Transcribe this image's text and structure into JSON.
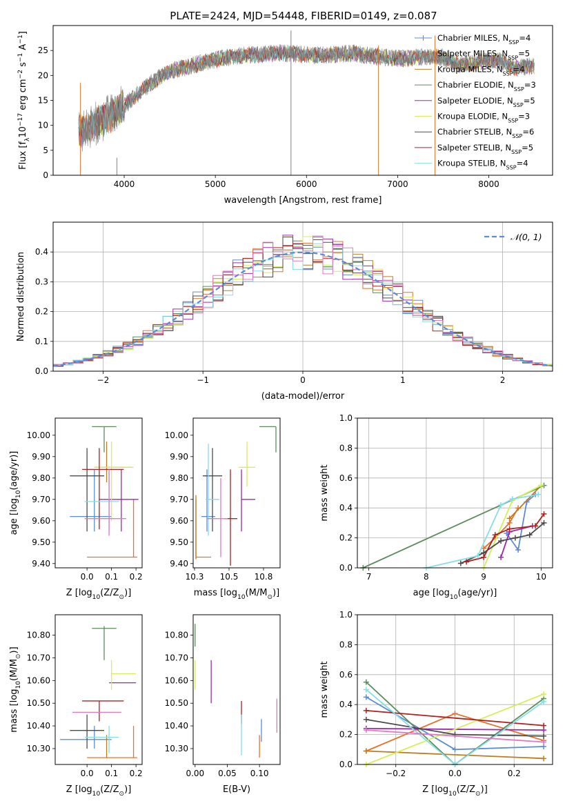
{
  "figure_title": "PLATE=2424, MJD=54448, FIBERID=0149, z=0.087",
  "chart_data": [
    {
      "type": "line",
      "id": "spectrum",
      "title": "PLATE=2424, MJD=54448, FIBERID=0149, z=0.087",
      "xlabel": "wavelength [Angstrom, rest frame]",
      "ylabel_parts": [
        "Flux [f",
        "λ",
        "10",
        "−17",
        " erg cm",
        "−2",
        " s",
        "−1",
        " A",
        "−1",
        "]"
      ],
      "xlim": [
        3220,
        8700
      ],
      "ylim": [
        0,
        30
      ],
      "xticks": [
        4000,
        5000,
        6000,
        7000,
        8000
      ],
      "yticks": [
        0,
        5,
        10,
        15,
        20,
        25
      ],
      "legend_position": "top-right",
      "spectrum_shape": {
        "x": [
          3500,
          3600,
          3700,
          3800,
          3900,
          4000,
          4100,
          4200,
          4300,
          4400,
          4500,
          4700,
          4900,
          5100,
          5300,
          5500,
          5700,
          5900,
          6100,
          6300,
          6500,
          6700,
          6900,
          7100,
          7300,
          7500,
          7700,
          7900,
          8100,
          8300,
          8500
        ],
        "y": [
          8.5,
          9.5,
          10.5,
          11.5,
          12.5,
          14.0,
          15.5,
          17.0,
          18.5,
          19.8,
          20.8,
          21.8,
          22.8,
          23.5,
          24.0,
          24.2,
          24.5,
          24.3,
          24.0,
          24.2,
          24.4,
          24.0,
          23.5,
          23.4,
          23.8,
          23.6,
          22.0,
          22.8,
          23.0,
          21.5,
          22.0
        ]
      },
      "series": [
        {
          "name_parts": [
            "Chabrier MILES, N",
            "SSP",
            "=4"
          ],
          "color": "#5b8bd6",
          "marker": "+"
        },
        {
          "name_parts": [
            "Salpeter MILES, N",
            "SSP",
            "=5"
          ],
          "color": "#e8702a",
          "marker": "+"
        },
        {
          "name_parts": [
            "Kroupa MILES, N",
            "SSP",
            "=4"
          ],
          "color": "#c07b1e",
          "marker": ""
        },
        {
          "name_parts": [
            "Chabrier ELODIE, N",
            "SSP",
            "=3"
          ],
          "color": "#5c8c5c",
          "marker": ""
        },
        {
          "name_parts": [
            "Salpeter ELODIE, N",
            "SSP",
            "=5"
          ],
          "color": "#9c27b0",
          "marker": ""
        },
        {
          "name_parts": [
            "Kroupa ELODIE, N",
            "SSP",
            "=3"
          ],
          "color": "#d4ee5a",
          "marker": ""
        },
        {
          "name_parts": [
            "Chabrier STELIB, N",
            "SSP",
            "=6"
          ],
          "color": "#4a4a4a",
          "marker": ""
        },
        {
          "name_parts": [
            "Salpeter STELIB, N",
            "SSP",
            "=5"
          ],
          "color": "#b01e1e",
          "marker": ""
        },
        {
          "name_parts": [
            "Kroupa STELIB, N",
            "SSP",
            "=4"
          ],
          "color": "#86dde6",
          "marker": ""
        }
      ],
      "spikes": [
        {
          "x": 3520,
          "y0": 0,
          "y1": 18.5,
          "color": "#e8702a"
        },
        {
          "x": 3920,
          "y0": 0,
          "y1": 3.5,
          "color": "#c07b1e"
        },
        {
          "x": 5830,
          "y0": 0,
          "y1": 29,
          "color": "#808080"
        },
        {
          "x": 6790,
          "y0": 0,
          "y1": 26,
          "color": "#c07b1e"
        },
        {
          "x": 7410,
          "y0": 0,
          "y1": 28,
          "color": "#e8702a"
        }
      ]
    },
    {
      "type": "histogram",
      "id": "residuals",
      "xlabel": "(data-model)/error",
      "ylabel": "Normed distribution",
      "xlim": [
        -2.5,
        2.5
      ],
      "ylim": [
        0,
        0.5
      ],
      "xticks": [
        -2,
        -1,
        0,
        1,
        2
      ],
      "yticks": [
        0.0,
        0.1,
        0.2,
        0.3,
        0.4
      ],
      "grid": true,
      "bin_width": 0.1,
      "reference_curve": {
        "name": "𝒩(0, 1)",
        "style": "dashed",
        "color": "#5b8bd6",
        "mean": 0,
        "sigma": 1
      },
      "legend_position": "top-right",
      "series_colors": [
        "#5b8bd6",
        "#e8702a",
        "#c07b1e",
        "#5c8c5c",
        "#9c27b0",
        "#d4ee5a",
        "#4a4a4a",
        "#b01e1e",
        "#86dde6",
        "#e377c2"
      ]
    },
    {
      "type": "scatter",
      "id": "age-vs-Z",
      "xlabel": "Z [log10(Z/Z⊙)]",
      "ylabel": "age  [log10(age/yr)]",
      "xlim": [
        -0.13,
        0.225
      ],
      "ylim": [
        9.38,
        10.08
      ],
      "xticks": [
        0.0,
        0.1,
        0.2
      ],
      "yticks": [
        9.4,
        9.5,
        9.6,
        9.7,
        9.8,
        9.9,
        10.0
      ],
      "points": [
        {
          "x": 0.03,
          "y": 9.62,
          "xerr": [
            0.1,
            0.07
          ],
          "yerr": [
            0.07,
            0.22
          ],
          "color": "#5b8bd6"
        },
        {
          "x": 0.19,
          "y": 9.43,
          "xerr": [
            0.19,
            0.015
          ],
          "yerr": [
            0.0,
            0.27
          ],
          "color": "#e8702a"
        },
        {
          "x": 0.08,
          "y": 9.85,
          "xerr": [
            0.05,
            0.1
          ],
          "yerr": [
            0.07,
            0.12
          ],
          "color": "#c07b1e"
        },
        {
          "x": 0.07,
          "y": 10.04,
          "xerr": [
            0.05,
            0.05
          ],
          "yerr": [
            0.12,
            0.0
          ],
          "color": "#5c8c5c"
        },
        {
          "x": 0.14,
          "y": 9.7,
          "xerr": [
            0.09,
            0.07
          ],
          "yerr": [
            0.15,
            0.14
          ],
          "color": "#9c27b0"
        },
        {
          "x": 0.1,
          "y": 9.85,
          "xerr": [
            0.07,
            0.09
          ],
          "yerr": [
            0.25,
            0.12
          ],
          "color": "#d4ee5a"
        },
        {
          "x": 0.0,
          "y": 9.81,
          "xerr": [
            0.07,
            0.07
          ],
          "yerr": [
            0.26,
            0.13
          ],
          "color": "#4a4a4a"
        },
        {
          "x": 0.05,
          "y": 9.84,
          "xerr": [
            0.07,
            0.1
          ],
          "yerr": [
            0.28,
            0.1
          ],
          "color": "#b01e1e"
        },
        {
          "x": 0.09,
          "y": 9.69,
          "xerr": [
            0.1,
            0.04
          ],
          "yerr": [
            0.14,
            0.14
          ],
          "color": "#86dde6"
        },
        {
          "x": 0.09,
          "y": 9.61,
          "xerr": [
            0.1,
            0.07
          ],
          "yerr": [
            0.08,
            0.23
          ],
          "color": "#e377c2"
        }
      ]
    },
    {
      "type": "scatter",
      "id": "age-vs-mass",
      "xlabel": "mass [log10(M/M⊙)]",
      "ylabel": "",
      "xlim": [
        10.24,
        10.87
      ],
      "ylim": [
        9.38,
        10.08
      ],
      "xticks": [
        10.25,
        10.5,
        10.75
      ],
      "yticks": [
        9.4,
        9.5,
        9.6,
        9.7,
        9.8,
        9.9,
        10.0
      ],
      "points": [
        {
          "x": 10.34,
          "y": 9.62,
          "xerr": [
            0.04,
            0.06
          ],
          "yerr": [
            0.07,
            0.22
          ],
          "color": "#5b8bd6"
        },
        {
          "x": 10.26,
          "y": 9.43,
          "xerr": [
            0.0,
            0.11
          ],
          "yerr": [
            0.0,
            0.27
          ],
          "color": "#e8702a"
        },
        {
          "x": 10.26,
          "y": 9.6,
          "xerr": [
            0.0,
            0.0
          ],
          "yerr": [
            0.18,
            0.12
          ],
          "color": "#c07b1e"
        },
        {
          "x": 10.84,
          "y": 10.04,
          "xerr": [
            0.12,
            0.0
          ],
          "yerr": [
            0.12,
            0.0
          ],
          "color": "#5c8c5c"
        },
        {
          "x": 10.59,
          "y": 9.7,
          "xerr": [
            0.0,
            0.1
          ],
          "yerr": [
            0.15,
            0.14
          ],
          "color": "#9c27b0"
        },
        {
          "x": 10.63,
          "y": 9.85,
          "xerr": [
            0.06,
            0.06
          ],
          "yerr": [
            0.09,
            0.12
          ],
          "color": "#d4ee5a"
        },
        {
          "x": 10.38,
          "y": 9.81,
          "xerr": [
            0.07,
            0.07
          ],
          "yerr": [
            0.26,
            0.13
          ],
          "color": "#4a4a4a"
        },
        {
          "x": 10.51,
          "y": 9.61,
          "xerr": [
            0.05,
            0.05
          ],
          "yerr": [
            0.22,
            0.23
          ],
          "color": "#b01e1e"
        },
        {
          "x": 10.35,
          "y": 9.7,
          "xerr": [
            0.02,
            0.08
          ],
          "yerr": [
            0.17,
            0.26
          ],
          "color": "#86dde6"
        },
        {
          "x": 10.44,
          "y": 9.61,
          "xerr": [
            0.1,
            0.05
          ],
          "yerr": [
            0.18,
            0.19
          ],
          "color": "#e377c2"
        }
      ]
    },
    {
      "type": "line",
      "id": "mass-weight-vs-age",
      "xlabel": "age  [log10(age/yr)]",
      "ylabel": "mass weight",
      "xlim": [
        6.8,
        10.2
      ],
      "ylim": [
        0,
        1
      ],
      "xticks": [
        7,
        8,
        9,
        10
      ],
      "yticks": [
        0.0,
        0.2,
        0.4,
        0.6,
        0.8,
        1.0
      ],
      "grid": true,
      "series": [
        {
          "color": "#5b8bd6",
          "x": [
            9.4,
            9.6,
            9.75,
            9.9
          ],
          "y": [
            0.23,
            0.12,
            0.44,
            0.49
          ]
        },
        {
          "color": "#e8702a",
          "x": [
            9.0,
            9.2,
            9.45,
            9.6
          ],
          "y": [
            0.13,
            0.2,
            0.3,
            0.4
          ]
        },
        {
          "color": "#c07b1e",
          "x": [
            9.45,
            10.0
          ],
          "y": [
            0.33,
            0.55
          ]
        },
        {
          "color": "#5c8c5c",
          "x": [
            6.9,
            10.05
          ],
          "y": [
            0.0,
            0.55
          ]
        },
        {
          "color": "#9c27b0",
          "x": [
            9.3,
            9.45,
            9.85
          ],
          "y": [
            0.07,
            0.24,
            0.28
          ]
        },
        {
          "color": "#d4ee5a",
          "x": [
            9.0,
            9.5,
            10.0
          ],
          "y": [
            0.0,
            0.45,
            0.55
          ]
        },
        {
          "color": "#4a4a4a",
          "x": [
            8.6,
            9.0,
            9.3,
            9.55,
            9.8,
            10.05
          ],
          "y": [
            0.03,
            0.1,
            0.18,
            0.2,
            0.22,
            0.3
          ]
        },
        {
          "color": "#b01e1e",
          "x": [
            8.7,
            9.0,
            9.2,
            9.45,
            9.9,
            10.05
          ],
          "y": [
            0.04,
            0.07,
            0.22,
            0.26,
            0.28,
            0.36
          ]
        },
        {
          "color": "#86dde6",
          "x": [
            8.0,
            8.9,
            9.3,
            9.5,
            9.95
          ],
          "y": [
            0.0,
            0.08,
            0.42,
            0.46,
            0.49
          ]
        }
      ]
    },
    {
      "type": "scatter",
      "id": "mass-vs-Z",
      "xlabel": "Z [log10(Z/Z⊙)]",
      "ylabel": "mass [log10(M/M⊙)]",
      "xlim": [
        -0.13,
        0.225
      ],
      "ylim": [
        10.23,
        10.89
      ],
      "xticks": [
        0.0,
        0.1,
        0.2
      ],
      "yticks": [
        10.3,
        10.4,
        10.5,
        10.6,
        10.7,
        10.8
      ],
      "points": [
        {
          "x": 0.03,
          "y": 10.34,
          "xerr": [
            0.14,
            0.07
          ],
          "yerr": [
            0.04,
            0.06
          ],
          "color": "#5b8bd6"
        },
        {
          "x": 0.19,
          "y": 10.26,
          "xerr": [
            0.19,
            0.015
          ],
          "yerr": [
            0.0,
            0.14
          ],
          "color": "#e8702a"
        },
        {
          "x": 0.08,
          "y": 10.26,
          "xerr": [
            0.0,
            0.0
          ],
          "yerr": [
            0.0,
            0.1
          ],
          "color": "#c07b1e"
        },
        {
          "x": 0.07,
          "y": 10.83,
          "xerr": [
            0.05,
            0.05
          ],
          "yerr": [
            0.14,
            0.01
          ],
          "color": "#5c8c5c"
        },
        {
          "x": 0.15,
          "y": 10.59,
          "xerr": [
            0.06,
            0.05
          ],
          "yerr": [
            0.0,
            0.0
          ],
          "color": "#9c27b0"
        },
        {
          "x": 0.1,
          "y": 10.63,
          "xerr": [
            0.0,
            0.1
          ],
          "yerr": [
            0.07,
            0.06
          ],
          "color": "#d4ee5a"
        },
        {
          "x": 0.0,
          "y": 10.38,
          "xerr": [
            0.07,
            0.07
          ],
          "yerr": [
            0.08,
            0.07
          ],
          "color": "#4a4a4a"
        },
        {
          "x": 0.05,
          "y": 10.51,
          "xerr": [
            0.07,
            0.1
          ],
          "yerr": [
            0.09,
            0.0
          ],
          "color": "#b01e1e"
        },
        {
          "x": 0.09,
          "y": 10.35,
          "xerr": [
            0.1,
            0.04
          ],
          "yerr": [
            0.07,
            0.05
          ],
          "color": "#86dde6"
        },
        {
          "x": 0.05,
          "y": 10.46,
          "xerr": [
            0.11,
            0.09
          ],
          "yerr": [
            0.0,
            0.0
          ],
          "color": "#e377c2"
        }
      ]
    },
    {
      "type": "scatter",
      "id": "mass-vs-ebv",
      "xlabel": "E(B-V)",
      "ylabel": "",
      "xlim": [
        -0.003,
        0.132
      ],
      "ylim": [
        10.23,
        10.89
      ],
      "xticks": [
        0.0,
        0.05,
        0.1
      ],
      "yticks": [
        10.3,
        10.4,
        10.5,
        10.6,
        10.7,
        10.8
      ],
      "points": [
        {
          "x": 0.0,
          "y": 10.8,
          "yerr": [
            0.05,
            0.05
          ],
          "color": "#5c8c5c"
        },
        {
          "x": 0.0,
          "y": 10.63,
          "yerr": [
            0.07,
            0.06
          ],
          "color": "#d4ee5a"
        },
        {
          "x": 0.025,
          "y": 10.59,
          "yerr": [
            0.09,
            0.1
          ],
          "color": "#9c27b0"
        },
        {
          "x": 0.072,
          "y": 10.46,
          "yerr": [
            0.05,
            0.05
          ],
          "color": "#b01e1e"
        },
        {
          "x": 0.072,
          "y": 10.36,
          "yerr": [
            0.09,
            0.09
          ],
          "color": "#86dde6"
        },
        {
          "x": 0.1,
          "y": 10.31,
          "yerr": [
            0.05,
            0.05
          ],
          "color": "#e8702a"
        },
        {
          "x": 0.103,
          "y": 10.38,
          "yerr": [
            0.05,
            0.05
          ],
          "color": "#5b8bd6"
        },
        {
          "x": 0.127,
          "y": 10.44,
          "yerr": [
            0.07,
            0.08
          ],
          "color": "#e377c2"
        }
      ]
    },
    {
      "type": "line",
      "id": "mass-weight-vs-Z",
      "xlabel": "Z [log10(Z/Z⊙)]",
      "ylabel": "mass weight",
      "xlim": [
        -0.33,
        0.33
      ],
      "ylim": [
        0,
        1
      ],
      "xticks": [
        -0.2,
        0.0,
        0.2
      ],
      "yticks": [
        0.0,
        0.2,
        0.4,
        0.6,
        0.8,
        1.0
      ],
      "grid": true,
      "series": [
        {
          "color": "#5b8bd6",
          "x": [
            -0.3,
            0.0,
            0.3
          ],
          "y": [
            0.45,
            0.1,
            0.12
          ]
        },
        {
          "color": "#e8702a",
          "x": [
            -0.3,
            0.0,
            0.3
          ],
          "y": [
            0.09,
            0.34,
            0.16
          ]
        },
        {
          "color": "#c07b1e",
          "x": [
            -0.3,
            0.3
          ],
          "y": [
            0.09,
            0.04
          ]
        },
        {
          "color": "#5c8c5c",
          "x": [
            -0.3,
            0.0,
            0.3
          ],
          "y": [
            0.55,
            0.0,
            0.44
          ]
        },
        {
          "color": "#9c27b0",
          "x": [
            -0.3,
            0.3
          ],
          "y": [
            0.24,
            0.23
          ]
        },
        {
          "color": "#d4ee5a",
          "x": [
            -0.3,
            0.3
          ],
          "y": [
            0.0,
            0.47
          ]
        },
        {
          "color": "#4a4a4a",
          "x": [
            -0.3,
            0.0,
            0.3
          ],
          "y": [
            0.3,
            0.2,
            0.19
          ]
        },
        {
          "color": "#b01e1e",
          "x": [
            -0.3,
            0.3
          ],
          "y": [
            0.36,
            0.26
          ]
        },
        {
          "color": "#86dde6",
          "x": [
            -0.3,
            0.0,
            0.3
          ],
          "y": [
            0.5,
            0.0,
            0.42
          ]
        },
        {
          "color": "#e377c2",
          "x": [
            -0.3,
            0.3
          ],
          "y": [
            0.23,
            0.15
          ]
        }
      ]
    }
  ]
}
